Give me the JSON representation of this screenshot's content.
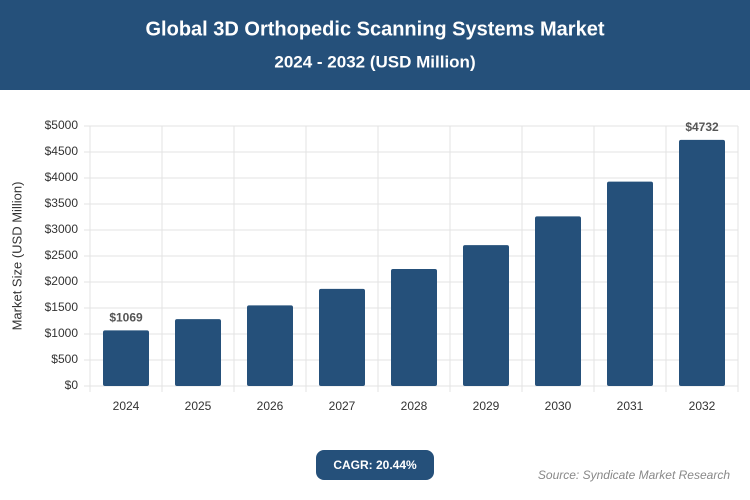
{
  "chart_data": {
    "type": "bar",
    "title": "Global 3D Orthopedic Scanning Systems Market",
    "subtitle": "2024 - 2032 (USD Million)",
    "y_label": "Market Size (USD Million)",
    "categories": [
      "2024",
      "2025",
      "2026",
      "2027",
      "2028",
      "2029",
      "2030",
      "2031",
      "2032"
    ],
    "values": [
      1069,
      1287,
      1550,
      1868,
      2249,
      2709,
      3263,
      3930,
      4732
    ],
    "value_labels": [
      "$1069",
      null,
      null,
      null,
      null,
      null,
      null,
      null,
      "$4732"
    ],
    "color": "#25507a",
    "ylim": [
      0,
      5000
    ],
    "yticks": [
      {
        "value": 0,
        "label": "$0"
      },
      {
        "value": 500,
        "label": "$500"
      },
      {
        "value": 1000,
        "label": "$1000"
      },
      {
        "value": 1500,
        "label": "$1500"
      },
      {
        "value": 2000,
        "label": "$2000"
      },
      {
        "value": 2500,
        "label": "$2500"
      },
      {
        "value": 3000,
        "label": "$3000"
      },
      {
        "value": 3500,
        "label": "$3500"
      },
      {
        "value": 4000,
        "label": "$4000"
      },
      {
        "value": 4500,
        "label": "$4500"
      },
      {
        "value": 5000,
        "label": "$5000"
      }
    ],
    "grid": true,
    "cagr": "CAGR: 20.44%",
    "source": "Source: Syndicate Market Research"
  }
}
